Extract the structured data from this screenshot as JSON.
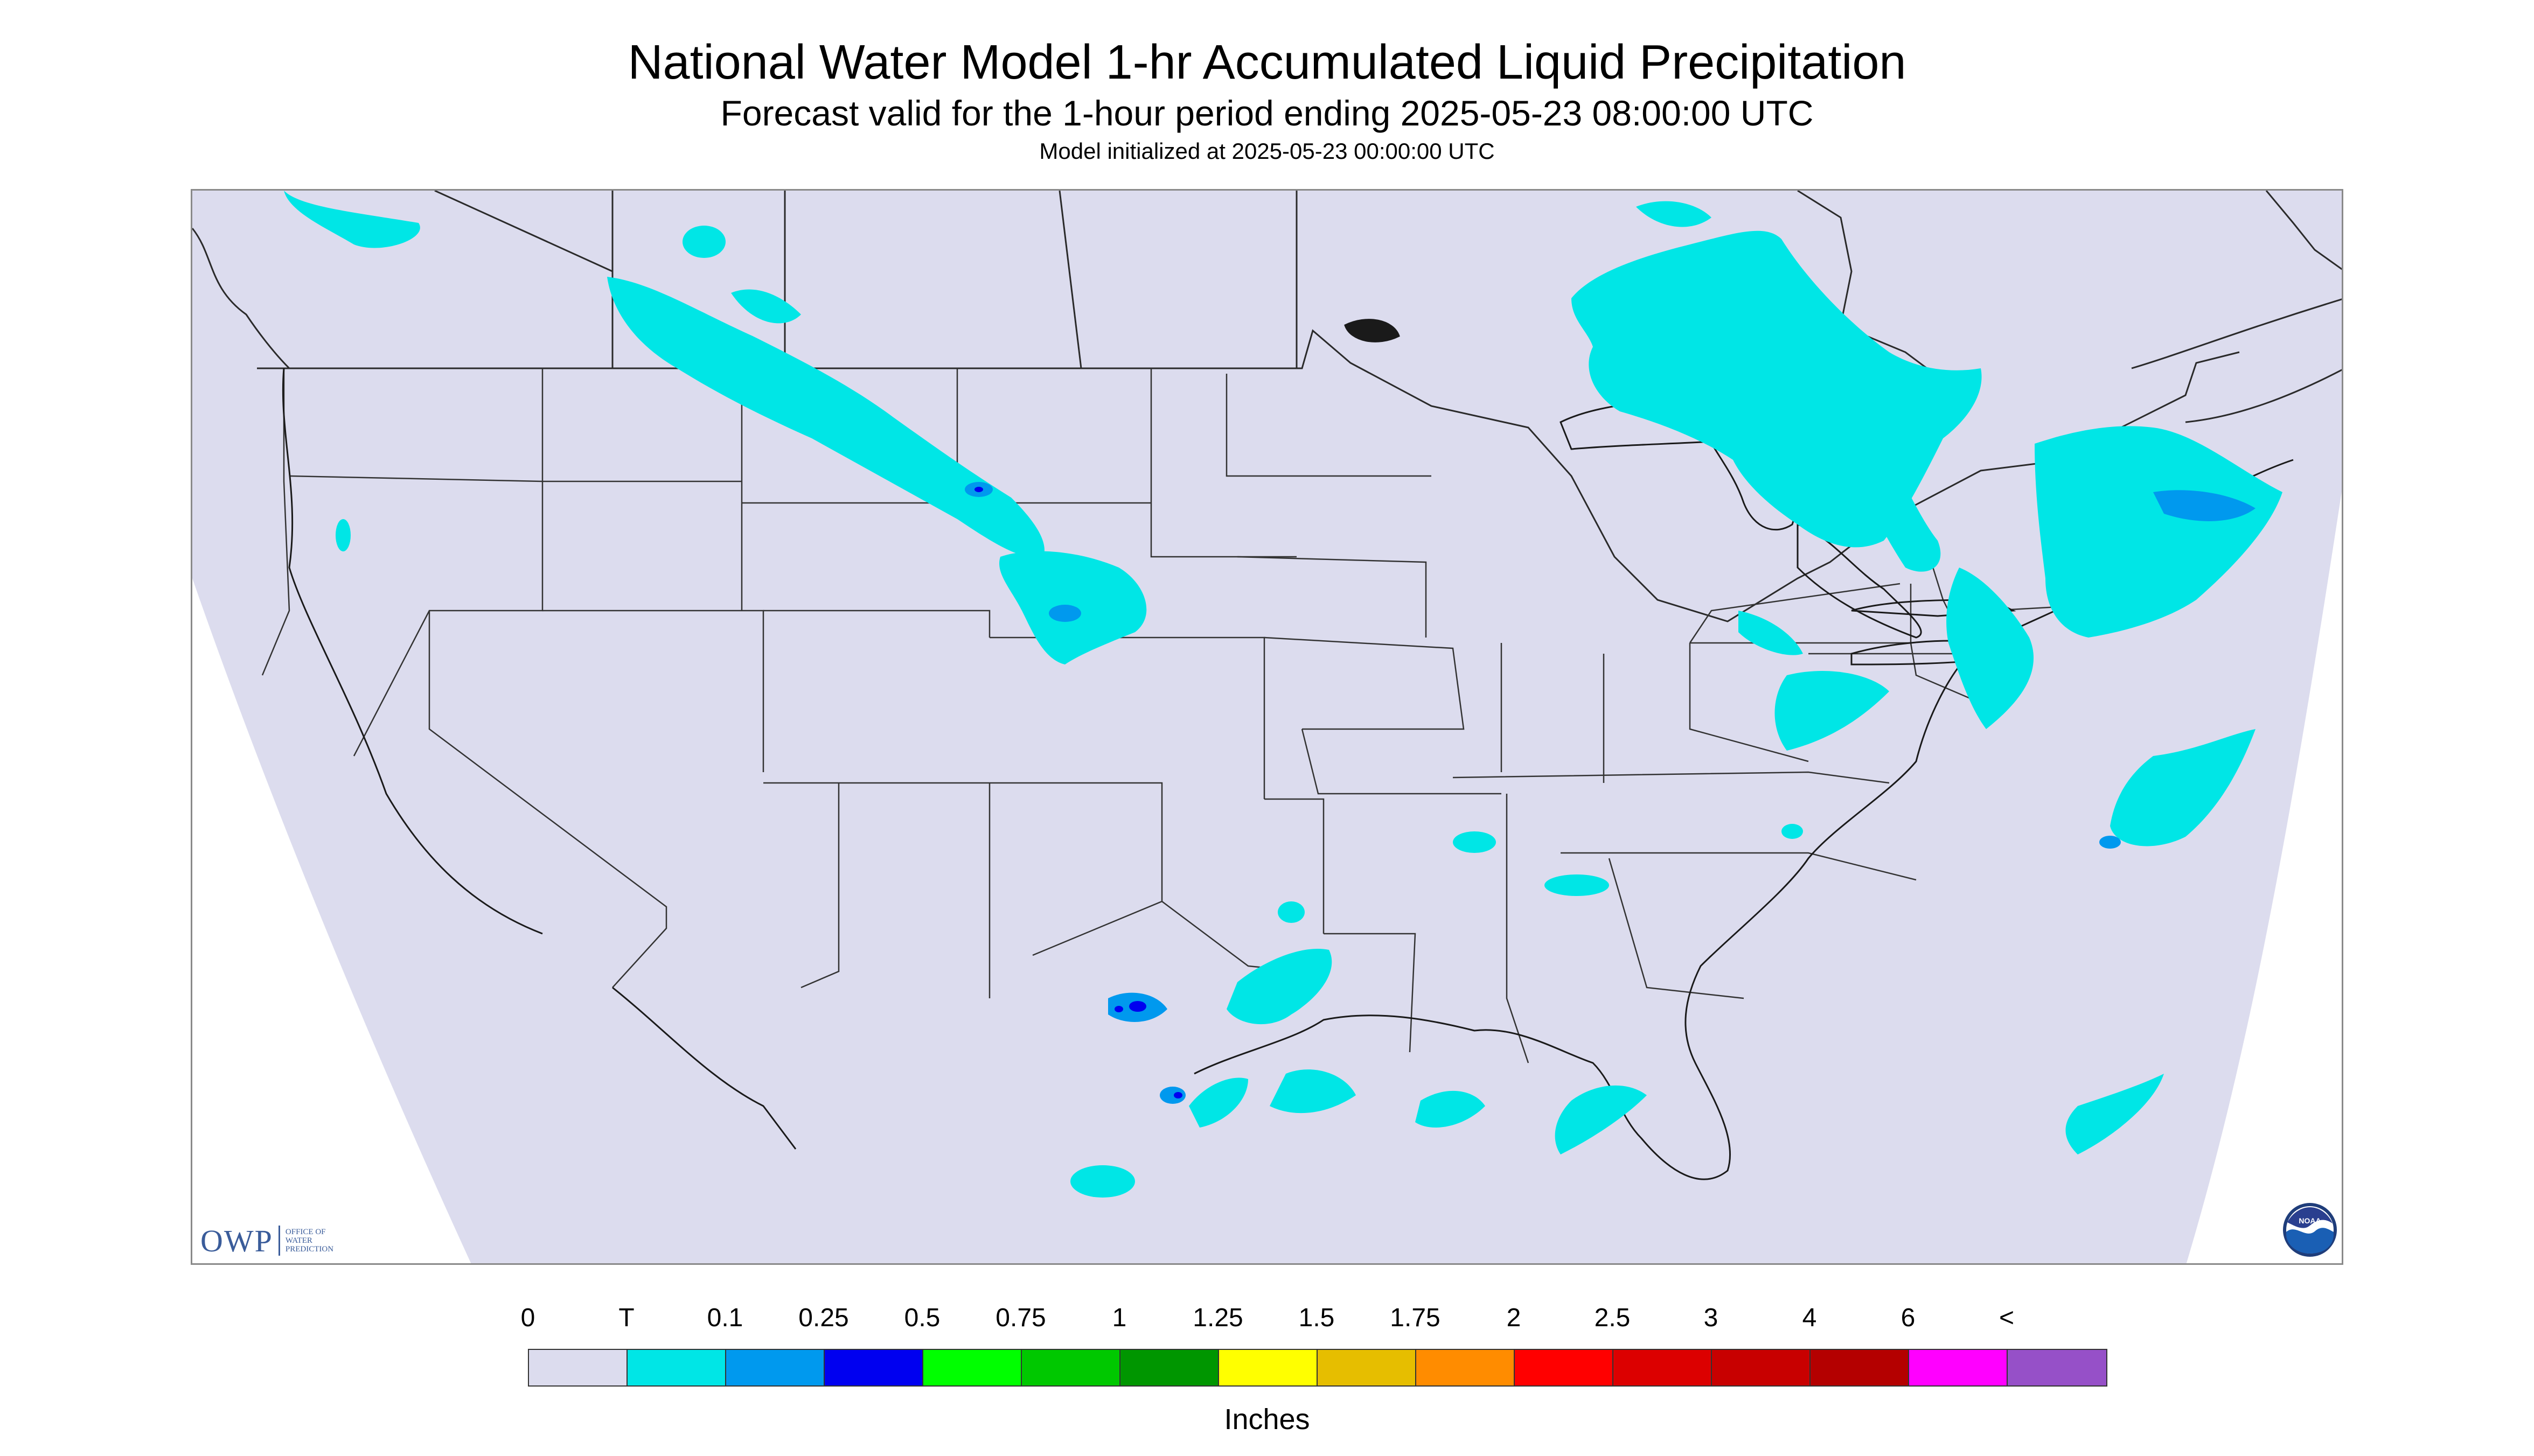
{
  "header": {
    "title": "National Water Model 1-hr Accumulated Liquid Precipitation",
    "subtitle": "Forecast valid for the 1-hour period ending 2025-05-23 08:00:00 UTC",
    "init_line": "Model initialized at 2025-05-23 00:00:00 UTC"
  },
  "map": {
    "background_color": "#dcdcee",
    "outside_color": "#ffffff",
    "border_color": "#2a2a2a",
    "precip_colors": {
      "trace": "#00e6e6",
      "light": "#0099ee",
      "moderate": "#0000f0"
    }
  },
  "logos": {
    "owp": {
      "abbrev": "OWP",
      "line1": "Office of",
      "line2": "Water",
      "line3": "Prediction"
    },
    "noaa": {
      "text": "NOAA"
    }
  },
  "legend": {
    "labels": [
      "0",
      "T",
      "0.1",
      "0.25",
      "0.5",
      "0.75",
      "1",
      "1.25",
      "1.5",
      "1.75",
      "2",
      "2.5",
      "3",
      "4",
      "6",
      "<"
    ],
    "colors": [
      "#dcdcee",
      "#00e6e6",
      "#0099ee",
      "#0000f0",
      "#00ff00",
      "#00c800",
      "#009600",
      "#ffff00",
      "#e6be00",
      "#ff8c00",
      "#ff0000",
      "#dc0000",
      "#c80000",
      "#b40000",
      "#ff00ff",
      "#9650c8"
    ],
    "units": "Inches"
  }
}
